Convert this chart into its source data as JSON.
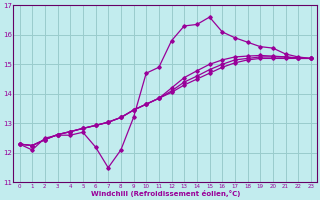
{
  "xlabel": "Windchill (Refroidissement éolien,°C)",
  "bg_color": "#c2ecee",
  "grid_color": "#99cccc",
  "line_color": "#990099",
  "spine_color": "#660066",
  "xlim": [
    -0.5,
    23.5
  ],
  "ylim": [
    11,
    17
  ],
  "yticks": [
    11,
    12,
    13,
    14,
    15,
    16,
    17
  ],
  "xticks": [
    0,
    1,
    2,
    3,
    4,
    5,
    6,
    7,
    8,
    9,
    10,
    11,
    12,
    13,
    14,
    15,
    16,
    17,
    18,
    19,
    20,
    21,
    22,
    23
  ],
  "series": [
    [
      12.3,
      12.1,
      12.5,
      12.6,
      12.6,
      12.7,
      12.2,
      11.5,
      12.1,
      13.2,
      14.7,
      14.9,
      15.8,
      16.3,
      16.35,
      16.6,
      16.1,
      15.9,
      15.75,
      15.6,
      15.55,
      15.35,
      15.25,
      15.2
    ],
    [
      12.3,
      12.25,
      12.45,
      12.62,
      12.72,
      12.83,
      12.93,
      13.04,
      13.2,
      13.45,
      13.65,
      13.85,
      14.05,
      14.3,
      14.5,
      14.7,
      14.9,
      15.05,
      15.15,
      15.2,
      15.2,
      15.2,
      15.2,
      15.2
    ],
    [
      12.3,
      12.25,
      12.45,
      12.62,
      12.72,
      12.83,
      12.93,
      13.04,
      13.2,
      13.45,
      13.65,
      13.85,
      14.1,
      14.4,
      14.6,
      14.82,
      15.0,
      15.15,
      15.2,
      15.25,
      15.25,
      15.25,
      15.2,
      15.2
    ],
    [
      12.3,
      12.25,
      12.45,
      12.62,
      12.72,
      12.83,
      12.93,
      13.04,
      13.2,
      13.45,
      13.65,
      13.85,
      14.2,
      14.55,
      14.78,
      15.0,
      15.15,
      15.25,
      15.28,
      15.3,
      15.28,
      15.25,
      15.22,
      15.2
    ]
  ]
}
